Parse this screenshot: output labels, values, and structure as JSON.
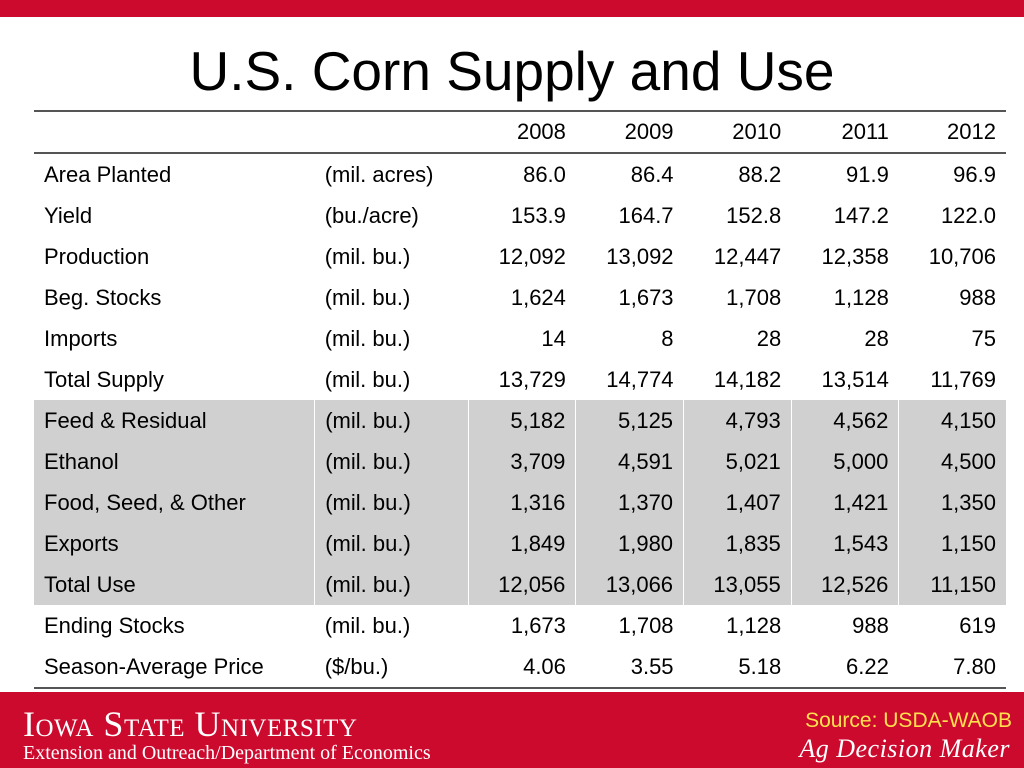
{
  "title": "U.S. Corn Supply and Use",
  "table": {
    "years": [
      "2008",
      "2009",
      "2010",
      "2011",
      "2012"
    ],
    "rows": [
      {
        "label": "Area Planted",
        "unit": "(mil. acres)",
        "values": [
          "86.0",
          "86.4",
          "88.2",
          "91.9",
          "96.9"
        ],
        "shaded": false
      },
      {
        "label": "Yield",
        "unit": "(bu./acre)",
        "values": [
          "153.9",
          "164.7",
          "152.8",
          "147.2",
          "122.0"
        ],
        "shaded": false
      },
      {
        "label": "Production",
        "unit": "(mil. bu.)",
        "values": [
          "12,092",
          "13,092",
          "12,447",
          "12,358",
          "10,706"
        ],
        "shaded": false
      },
      {
        "label": "Beg. Stocks",
        "unit": "(mil. bu.)",
        "values": [
          "1,624",
          "1,673",
          "1,708",
          "1,128",
          "988"
        ],
        "shaded": false
      },
      {
        "label": "Imports",
        "unit": "(mil. bu.)",
        "values": [
          "14",
          "8",
          "28",
          "28",
          "75"
        ],
        "shaded": false
      },
      {
        "label": "Total Supply",
        "unit": "(mil. bu.)",
        "values": [
          "13,729",
          "14,774",
          "14,182",
          "13,514",
          "11,769"
        ],
        "shaded": false
      },
      {
        "label": "Feed & Residual",
        "unit": "(mil. bu.)",
        "values": [
          "5,182",
          "5,125",
          "4,793",
          "4,562",
          "4,150"
        ],
        "shaded": true
      },
      {
        "label": "Ethanol",
        "unit": "(mil. bu.)",
        "values": [
          "3,709",
          "4,591",
          "5,021",
          "5,000",
          "4,500"
        ],
        "shaded": true
      },
      {
        "label": "Food, Seed, & Other",
        "unit": "(mil. bu.)",
        "values": [
          "1,316",
          "1,370",
          "1,407",
          "1,421",
          "1,350"
        ],
        "shaded": true
      },
      {
        "label": "Exports",
        "unit": "(mil. bu.)",
        "values": [
          "1,849",
          "1,980",
          "1,835",
          "1,543",
          "1,150"
        ],
        "shaded": true
      },
      {
        "label": "Total Use",
        "unit": "(mil. bu.)",
        "values": [
          "12,056",
          "13,066",
          "13,055",
          "12,526",
          "11,150"
        ],
        "shaded": true
      },
      {
        "label": "Ending Stocks",
        "unit": "(mil. bu.)",
        "values": [
          "1,673",
          "1,708",
          "1,128",
          "988",
          "619"
        ],
        "shaded": false
      },
      {
        "label": "Season-Average Price",
        "unit": "($/bu.)",
        "values": [
          "4.06",
          "3.55",
          "5.18",
          "6.22",
          "7.80"
        ],
        "shaded": false
      }
    ]
  },
  "footer": {
    "university": "Iowa State University",
    "department": "Extension and Outreach/Department of Economics",
    "source": "Source: USDA-WAOB",
    "brand": "Ag Decision Maker"
  },
  "colors": {
    "accent_red": "#cc0a2e",
    "shaded_row": "#d0d0d0",
    "source_text": "#ffe14d"
  }
}
